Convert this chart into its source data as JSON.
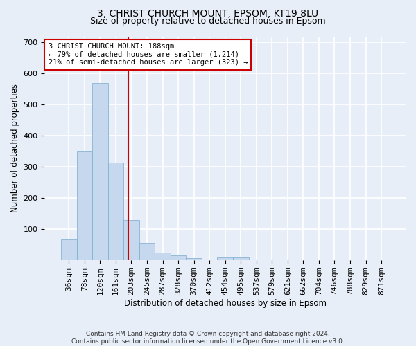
{
  "title_line1": "3, CHRIST CHURCH MOUNT, EPSOM, KT19 8LU",
  "title_line2": "Size of property relative to detached houses in Epsom",
  "xlabel": "Distribution of detached houses by size in Epsom",
  "ylabel": "Number of detached properties",
  "categories": [
    "36sqm",
    "78sqm",
    "120sqm",
    "161sqm",
    "203sqm",
    "245sqm",
    "287sqm",
    "328sqm",
    "370sqm",
    "412sqm",
    "454sqm",
    "495sqm",
    "537sqm",
    "579sqm",
    "621sqm",
    "662sqm",
    "704sqm",
    "746sqm",
    "788sqm",
    "829sqm",
    "871sqm"
  ],
  "values": [
    68,
    352,
    570,
    313,
    130,
    57,
    25,
    15,
    7,
    0,
    10,
    10,
    0,
    0,
    0,
    0,
    0,
    0,
    0,
    0,
    0
  ],
  "bar_color": "#c5d8ee",
  "bar_edge_color": "#7aabcf",
  "bar_width": 1.0,
  "vline_x": 3.82,
  "vline_color": "#cc0000",
  "ylim": [
    0,
    720
  ],
  "yticks": [
    100,
    200,
    300,
    400,
    500,
    600,
    700
  ],
  "annotation_text": "3 CHRIST CHURCH MOUNT: 188sqm\n← 79% of detached houses are smaller (1,214)\n21% of semi-detached houses are larger (323) →",
  "annotation_boxcolor": "white",
  "annotation_edgecolor": "#cc0000",
  "footer_line1": "Contains HM Land Registry data © Crown copyright and database right 2024.",
  "footer_line2": "Contains public sector information licensed under the Open Government Licence v3.0.",
  "bg_color": "#e8eef8",
  "grid_color": "white",
  "title_fontsize": 10,
  "subtitle_fontsize": 9,
  "axis_label_fontsize": 8.5,
  "tick_fontsize": 8
}
